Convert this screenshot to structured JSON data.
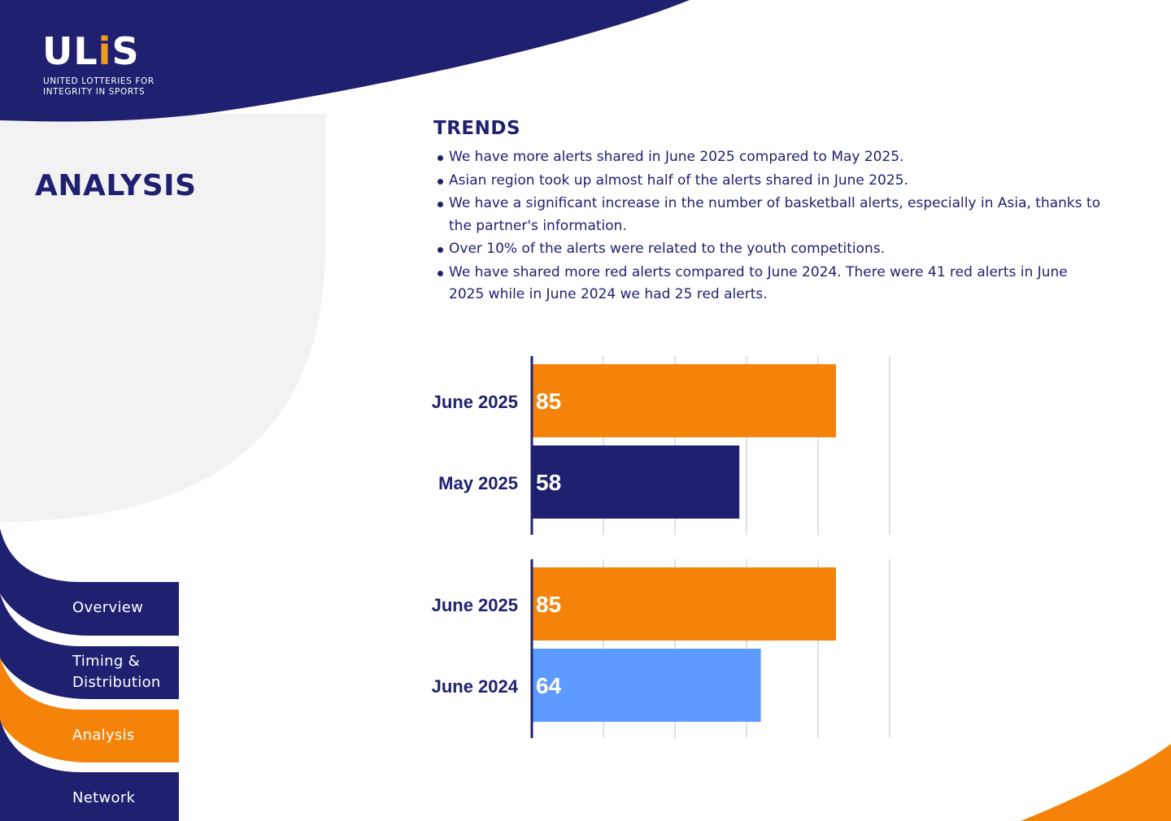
{
  "brand": {
    "logo_text": "ULiS",
    "tagline_line1": "UNITED LOTTERIES FOR",
    "tagline_line2": "INTEGRITY IN SPORTS"
  },
  "page": {
    "section_title": "ANALYSIS"
  },
  "colors": {
    "navy": "#1f2170",
    "orange": "#f5830a",
    "light_blue": "#5e9bff",
    "light_gray": "#f2f2f2"
  },
  "nav": {
    "items": [
      {
        "label": "Overview",
        "active": false
      },
      {
        "label": "Timing &",
        "label2": "Distribution",
        "active": false
      },
      {
        "label": "Analysis",
        "active": true
      },
      {
        "label": "Network",
        "active": false
      }
    ]
  },
  "trends": {
    "title": "TRENDS",
    "bullets": [
      "We have more alerts shared in June 2025 compared to May 2025.",
      "Asian region took up almost half of the alerts shared in June 2025.",
      "We have a significant increase in the number of basketball alerts, especially in Asia, thanks to the partner's information.",
      "Over 10% of the alerts were related to the youth competitions.",
      "We have shared more red alerts compared to June 2024. There were 41 red alerts in June 2025 while in June 2024 we had 25 red alerts."
    ]
  },
  "chart_data": [
    {
      "type": "bar",
      "orientation": "horizontal",
      "categories": [
        "June 2025",
        "May 2025"
      ],
      "values": [
        85,
        58
      ],
      "colors": [
        "#f5830a",
        "#1f2170"
      ],
      "xlim": [
        0,
        100
      ],
      "grid": true,
      "value_labels": true
    },
    {
      "type": "bar",
      "orientation": "horizontal",
      "categories": [
        "June 2025",
        "June 2024"
      ],
      "values": [
        85,
        64
      ],
      "colors": [
        "#f5830a",
        "#5e9bff"
      ],
      "xlim": [
        0,
        100
      ],
      "grid": true,
      "value_labels": true
    }
  ]
}
